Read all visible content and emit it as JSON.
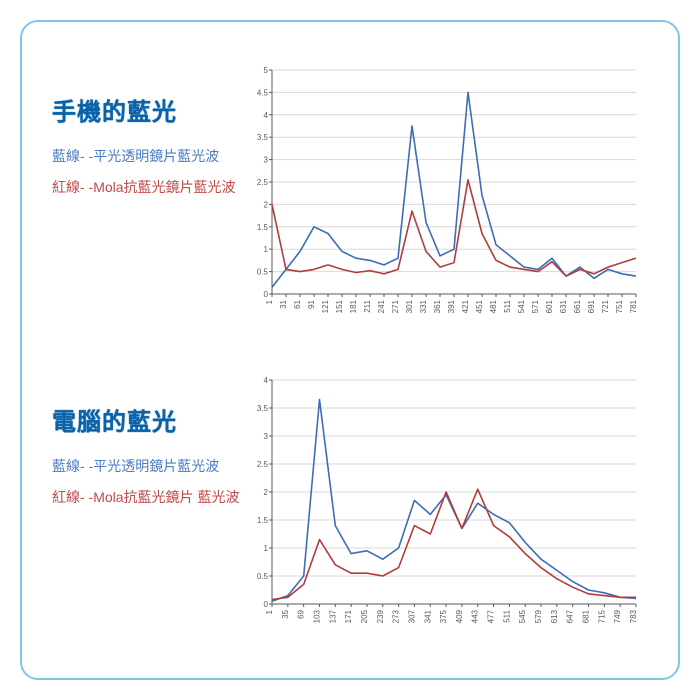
{
  "panel": {
    "border_color": "#7fc6e8",
    "border_radius": 18,
    "background": "#ffffff"
  },
  "labels": {
    "title_color": "#0a62a8",
    "blue_color": "#4a7dc3",
    "red_color": "#c24a4a"
  },
  "charts": [
    {
      "id": "phone",
      "title": "手機的藍光",
      "blue_legend": "藍線- -平光透明鏡片藍光波",
      "red_legend": "紅線- -Mola抗藍光鏡片藍光波",
      "type": "line",
      "ylim": [
        0,
        5
      ],
      "ytick_step": 0.5,
      "x_step": 30,
      "x_max": 781,
      "grid_color": "#d8d8d8",
      "axis_color": "#5a5a5a",
      "tick_font": 8,
      "line_width": 1.6,
      "blue_color": "#3d6db8",
      "red_color": "#b23c3c",
      "blue_series": [
        0.15,
        0.55,
        0.95,
        1.5,
        1.35,
        0.95,
        0.8,
        0.75,
        0.65,
        0.8,
        3.75,
        1.6,
        0.85,
        1.0,
        4.5,
        2.2,
        1.1,
        0.85,
        0.6,
        0.55,
        0.8,
        0.4,
        0.6,
        0.35,
        0.55,
        0.45,
        0.4
      ],
      "red_series": [
        2.0,
        0.55,
        0.5,
        0.55,
        0.65,
        0.55,
        0.48,
        0.52,
        0.45,
        0.55,
        1.85,
        0.95,
        0.6,
        0.7,
        2.55,
        1.35,
        0.75,
        0.6,
        0.55,
        0.5,
        0.72,
        0.4,
        0.55,
        0.45,
        0.6,
        0.7,
        0.8
      ]
    },
    {
      "id": "computer",
      "title": "電腦的藍光",
      "blue_legend": "藍線- -平光透明鏡片藍光波",
      "red_legend": "紅線- -Mola抗藍光鏡片 藍光波",
      "type": "line",
      "ylim": [
        0,
        4
      ],
      "ytick_step": 0.5,
      "x_step": 34,
      "x_max": 783,
      "grid_color": "#d8d8d8",
      "axis_color": "#5a5a5a",
      "tick_font": 8,
      "line_width": 1.6,
      "blue_color": "#3d6db8",
      "red_color": "#b23c3c",
      "blue_series": [
        0.05,
        0.15,
        0.5,
        3.65,
        1.4,
        0.9,
        0.95,
        0.8,
        1.0,
        1.85,
        1.6,
        1.95,
        1.35,
        1.8,
        1.6,
        1.45,
        1.1,
        0.8,
        0.6,
        0.4,
        0.25,
        0.2,
        0.12,
        0.1
      ],
      "red_series": [
        0.08,
        0.12,
        0.35,
        1.15,
        0.7,
        0.55,
        0.55,
        0.5,
        0.65,
        1.4,
        1.25,
        2.0,
        1.35,
        2.05,
        1.4,
        1.2,
        0.9,
        0.65,
        0.45,
        0.3,
        0.18,
        0.15,
        0.12,
        0.12
      ]
    }
  ]
}
